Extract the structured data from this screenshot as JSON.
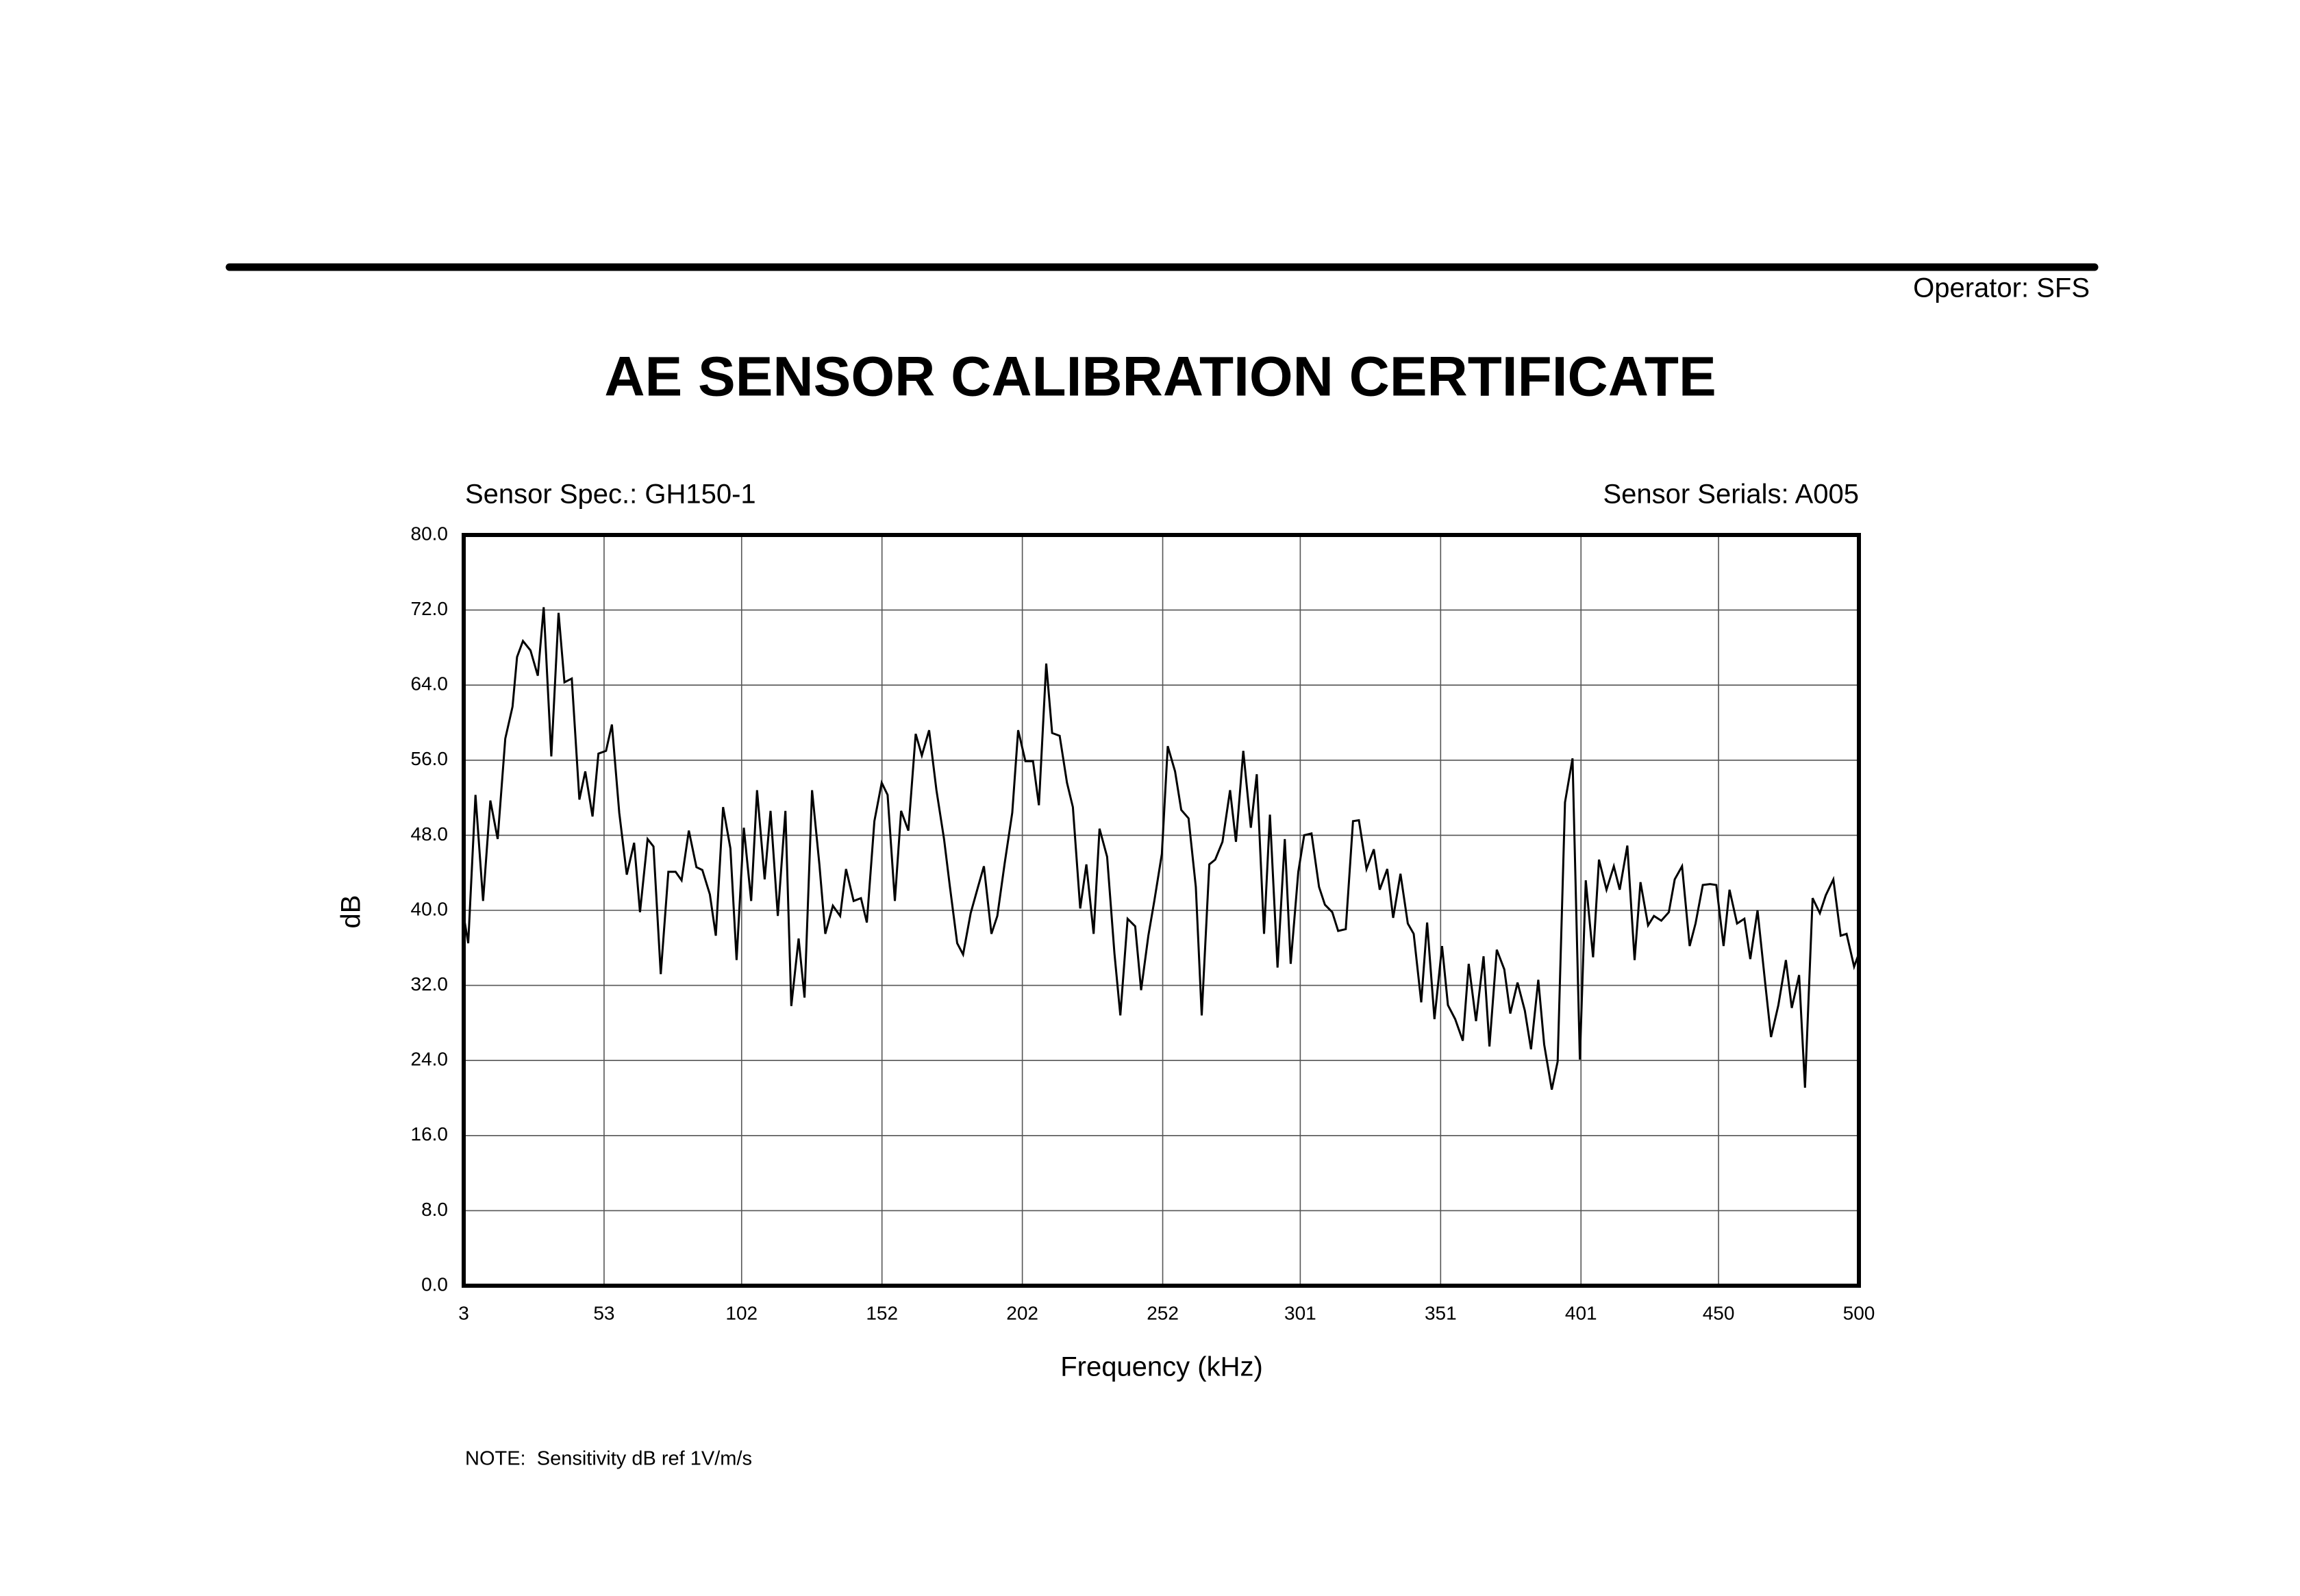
{
  "chart_data": {
    "type": "line",
    "operator": "Operator: SFS",
    "title": "AE SENSOR CALIBRATION CERTIFICATE",
    "sensor_spec": "Sensor Spec.: GH150-1",
    "sensor_serials": "Sensor Serials: A005",
    "ylabel": "dB",
    "xlabel": "Frequency (kHz)",
    "note": "NOTE:  Sensitivity dB ref 1V/m/s",
    "xlim": [
      3,
      500
    ],
    "ylim": [
      0,
      80
    ],
    "xticks": [
      3,
      53,
      102,
      152,
      202,
      252,
      301,
      351,
      401,
      450,
      500
    ],
    "yticks": [
      {
        "value": 0,
        "label": "0.0"
      },
      {
        "value": 8,
        "label": "8.0"
      },
      {
        "value": 16,
        "label": "16.0"
      },
      {
        "value": 24,
        "label": "24.0"
      },
      {
        "value": 32,
        "label": "32.0"
      },
      {
        "value": 40,
        "label": "40.0"
      },
      {
        "value": 48,
        "label": "48.0"
      },
      {
        "value": 56,
        "label": "56.0"
      },
      {
        "value": 64,
        "label": "64.0"
      },
      {
        "value": 72,
        "label": "72.0"
      },
      {
        "value": 80,
        "label": "80.0"
      }
    ],
    "grid": true,
    "color": "#000000",
    "x": [
      3.0,
      4.6,
      7.2,
      9.9,
      12.5,
      15.1,
      17.8,
      20.4,
      22.0,
      24.1,
      26.8,
      29.4,
      31.5,
      34.2,
      36.8,
      38.9,
      41.5,
      44.2,
      46.3,
      48.9,
      51.0,
      53.7,
      55.8,
      58.4,
      61.1,
      63.7,
      65.8,
      68.5,
      70.6,
      73.2,
      75.9,
      78.5,
      80.6,
      83.2,
      85.9,
      88.0,
      90.7,
      92.8,
      95.4,
      98.0,
      100.2,
      102.8,
      105.4,
      107.5,
      110.2,
      112.3,
      114.9,
      117.6,
      119.7,
      122.3,
      124.4,
      127.1,
      129.7,
      131.8,
      134.5,
      137.1,
      139.2,
      141.9,
      144.5,
      146.6,
      149.3,
      151.9,
      154.0,
      156.6,
      158.8,
      161.4,
      164.0,
      166.2,
      168.8,
      171.4,
      174.1,
      176.2,
      178.8,
      180.9,
      183.6,
      186.2,
      188.3,
      191.0,
      193.1,
      195.7,
      198.4,
      200.5,
      203.1,
      205.8,
      207.9,
      210.5,
      212.6,
      215.3,
      217.9,
      220.0,
      222.6,
      224.8,
      227.4,
      229.5,
      232.2,
      234.8,
      236.9,
      239.5,
      242.2,
      244.3,
      246.9,
      249.0,
      251.7,
      253.8,
      256.4,
      258.6,
      261.2,
      263.8,
      265.9,
      268.6,
      270.7,
      273.3,
      276.0,
      278.1,
      280.7,
      283.4,
      285.5,
      288.1,
      290.2,
      292.9,
      295.5,
      297.6,
      300.3,
      302.4,
      305.0,
      307.7,
      309.8,
      312.4,
      314.5,
      317.2,
      319.8,
      321.9,
      324.6,
      327.2,
      329.3,
      332.0,
      334.1,
      336.7,
      339.3,
      341.4,
      344.1,
      346.2,
      348.8,
      351.5,
      353.6,
      356.2,
      358.9,
      361.0,
      363.6,
      366.3,
      368.4,
      371.0,
      373.7,
      375.8,
      378.4,
      381.0,
      383.2,
      385.8,
      387.9,
      390.6,
      392.7,
      395.3,
      398.0,
      400.6,
      402.7,
      405.3,
      407.4,
      410.1,
      412.7,
      414.8,
      417.5,
      420.1,
      422.2,
      424.9,
      427.0,
      429.6,
      432.3,
      434.4,
      437.0,
      439.7,
      441.8,
      444.4,
      447.0,
      449.2,
      451.8,
      453.9,
      456.6,
      459.2,
      461.3,
      463.9,
      466.6,
      468.7,
      471.3,
      474.0,
      476.1,
      478.7,
      480.8,
      483.5,
      486.1,
      488.2,
      490.9,
      493.5,
      495.6,
      498.3,
      500.0
    ],
    "values": [
      39.4,
      36.5,
      52.3,
      41,
      51.7,
      47.6,
      58.3,
      61.7,
      67,
      68.7,
      67.7,
      65,
      72.3,
      56.4,
      71.7,
      64.3,
      64.7,
      51.8,
      54.8,
      50,
      56.7,
      57,
      59.8,
      50.4,
      43.8,
      47.2,
      39.8,
      47.6,
      46.8,
      33.2,
      44.1,
      44.1,
      43.2,
      48.5,
      44.6,
      44.3,
      41.7,
      37.3,
      51,
      46.6,
      34.7,
      48.8,
      41,
      52.8,
      43.3,
      50.6,
      39.4,
      50.6,
      29.8,
      37,
      30.7,
      52.8,
      44.9,
      37.5,
      40.5,
      39.4,
      44.4,
      41,
      41.3,
      38.7,
      49.5,
      53.6,
      52.3,
      41,
      50.6,
      48.5,
      58.8,
      56.5,
      59.2,
      52.8,
      47.6,
      42.5,
      36.5,
      35.3,
      39.7,
      42.5,
      44.7,
      37.5,
      39.4,
      45,
      50.4,
      59.2,
      55.9,
      55.9,
      51.2,
      66.3,
      58.9,
      58.6,
      53.6,
      51,
      40.2,
      44.9,
      37.5,
      48.7,
      45.7,
      35.4,
      28.8,
      39.1,
      38.3,
      31.5,
      37.3,
      41,
      46,
      57.5,
      54.8,
      50.7,
      49.8,
      42.5,
      28.8,
      44.9,
      45.4,
      47.3,
      52.8,
      47.3,
      57,
      48.8,
      54.5,
      37.5,
      50.2,
      33.9,
      47.6,
      34.3,
      44.1,
      48,
      48.2,
      42.5,
      40.6,
      39.8,
      37.8,
      38,
      49.5,
      49.6,
      44.4,
      46.5,
      42.2,
      44.4,
      39.2,
      43.9,
      38.6,
      37.5,
      30.2,
      38.7,
      28.4,
      36.2,
      29.9,
      28.4,
      26.1,
      34.3,
      28.2,
      35.1,
      25.5,
      35.8,
      33.7,
      29,
      32.3,
      29.3,
      25.2,
      32.6,
      25.7,
      20.9,
      23.9,
      51.5,
      56.2,
      24.1,
      43.2,
      35,
      45.4,
      42.2,
      44.7,
      42.2,
      46.9,
      34.7,
      43,
      38.4,
      39.4,
      38.9,
      39.8,
      43.3,
      44.7,
      36.2,
      38.6,
      42.7,
      42.8,
      42.7,
      36.2,
      42.2,
      38.6,
      39.1,
      34.8,
      40,
      32.3,
      26.5,
      29.9,
      34.7,
      29.6,
      33.1,
      21.1,
      41.3,
      39.7,
      41.6,
      43.3,
      37.3,
      37.5,
      34,
      35.4
    ]
  }
}
